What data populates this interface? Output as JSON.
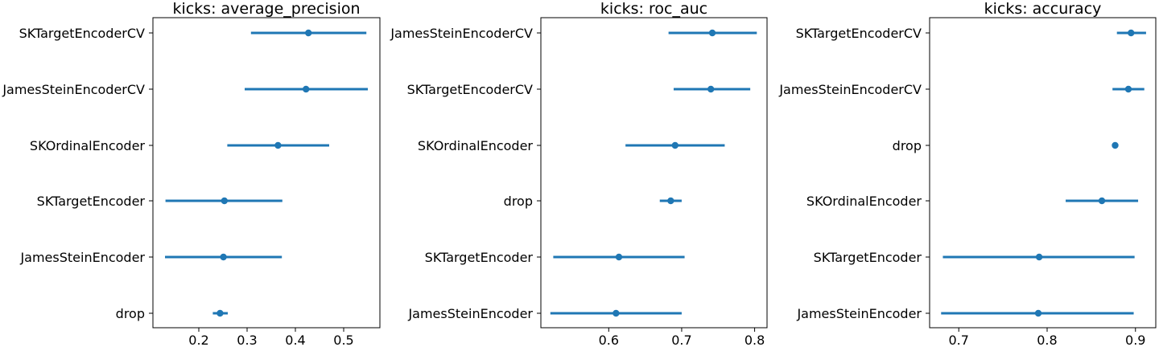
{
  "chart_data": [
    {
      "type": "scatter",
      "title": "kicks: average_precision",
      "xlim": [
        0.105,
        0.575
      ],
      "xticks": [
        0.2,
        0.3,
        0.4,
        0.5
      ],
      "xtick_labels": [
        "0.2",
        "0.3",
        "0.4",
        "0.5"
      ],
      "categories": [
        "SKTargetEncoderCV",
        "JamesSteinEncoderCV",
        "SKOrdinalEncoder",
        "SKTargetEncoder",
        "JamesSteinEncoder",
        "drop"
      ],
      "values": [
        0.427,
        0.422,
        0.364,
        0.253,
        0.251,
        0.244
      ],
      "ci_low": [
        0.308,
        0.295,
        0.259,
        0.131,
        0.13,
        0.229
      ],
      "ci_high": [
        0.547,
        0.55,
        0.47,
        0.373,
        0.372,
        0.26
      ],
      "color": "#1f77b4"
    },
    {
      "type": "scatter",
      "title": "kicks: roc_auc",
      "xlim": [
        0.507,
        0.817
      ],
      "xticks": [
        0.6,
        0.7,
        0.8
      ],
      "xtick_labels": [
        "0.6",
        "0.7",
        "0.8"
      ],
      "categories": [
        "JamesSteinEncoderCV",
        "SKTargetEncoderCV",
        "SKOrdinalEncoder",
        "drop",
        "SKTargetEncoder",
        "JamesSteinEncoder"
      ],
      "values": [
        0.742,
        0.74,
        0.691,
        0.685,
        0.614,
        0.61
      ],
      "ci_low": [
        0.682,
        0.689,
        0.623,
        0.67,
        0.524,
        0.52
      ],
      "ci_high": [
        0.803,
        0.794,
        0.759,
        0.7,
        0.704,
        0.7
      ],
      "color": "#1f77b4"
    },
    {
      "type": "scatter",
      "title": "kicks: accuracy",
      "xlim": [
        0.667,
        0.923
      ],
      "xticks": [
        0.7,
        0.8,
        0.9
      ],
      "xtick_labels": [
        "0.7",
        "0.8",
        "0.9"
      ],
      "categories": [
        "SKTargetEncoderCV",
        "JamesSteinEncoderCV",
        "drop",
        "SKOrdinalEncoder",
        "SKTargetEncoder",
        "JamesSteinEncoder"
      ],
      "values": [
        0.895,
        0.892,
        0.877,
        0.862,
        0.791,
        0.79
      ],
      "ci_low": [
        0.879,
        0.874,
        0.877,
        0.821,
        0.682,
        0.68
      ],
      "ci_high": [
        0.912,
        0.91,
        0.877,
        0.903,
        0.899,
        0.898
      ],
      "color": "#1f77b4"
    }
  ]
}
